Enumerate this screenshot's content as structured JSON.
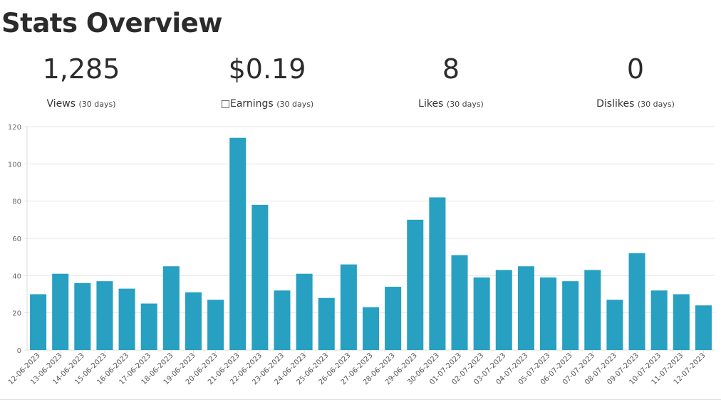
{
  "title": "Stats Overview",
  "stats": [
    {
      "value": "1,285",
      "label": "Views",
      "period": "(30 days)"
    },
    {
      "value": "$0.19",
      "label": "□Earnings",
      "period": "(30 days)"
    },
    {
      "value": "8",
      "label": "Likes",
      "period": "(30 days)"
    },
    {
      "value": "0",
      "label": "Dislikes",
      "period": "(30 days)"
    }
  ],
  "chart_data": {
    "type": "bar",
    "categories": [
      "12-06-2023",
      "13-06-2023",
      "14-06-2023",
      "15-06-2023",
      "16-06-2023",
      "17-06-2023",
      "18-06-2023",
      "19-06-2023",
      "20-06-2023",
      "21-06-2023",
      "22-06-2023",
      "23-06-2023",
      "24-06-2023",
      "25-06-2023",
      "26-06-2023",
      "27-06-2023",
      "28-06-2023",
      "29-06-2023",
      "30-06-2023",
      "01-07-2023",
      "02-07-2023",
      "03-07-2023",
      "04-07-2023",
      "05-07-2023",
      "06-07-2023",
      "07-07-2023",
      "08-07-2023",
      "09-07-2023",
      "10-07-2023",
      "11-07-2023",
      "12-07-2023"
    ],
    "values": [
      30,
      41,
      36,
      37,
      33,
      25,
      45,
      31,
      27,
      114,
      78,
      32,
      41,
      28,
      46,
      23,
      34,
      70,
      82,
      51,
      39,
      43,
      45,
      39,
      37,
      43,
      27,
      52,
      32,
      30,
      24
    ],
    "ylim": [
      0,
      120
    ],
    "yticks": [
      0,
      20,
      40,
      60,
      80,
      100,
      120
    ],
    "bar_color": "#27a0c1",
    "grid": true,
    "xlabel": "",
    "ylabel": "",
    "title": ""
  }
}
